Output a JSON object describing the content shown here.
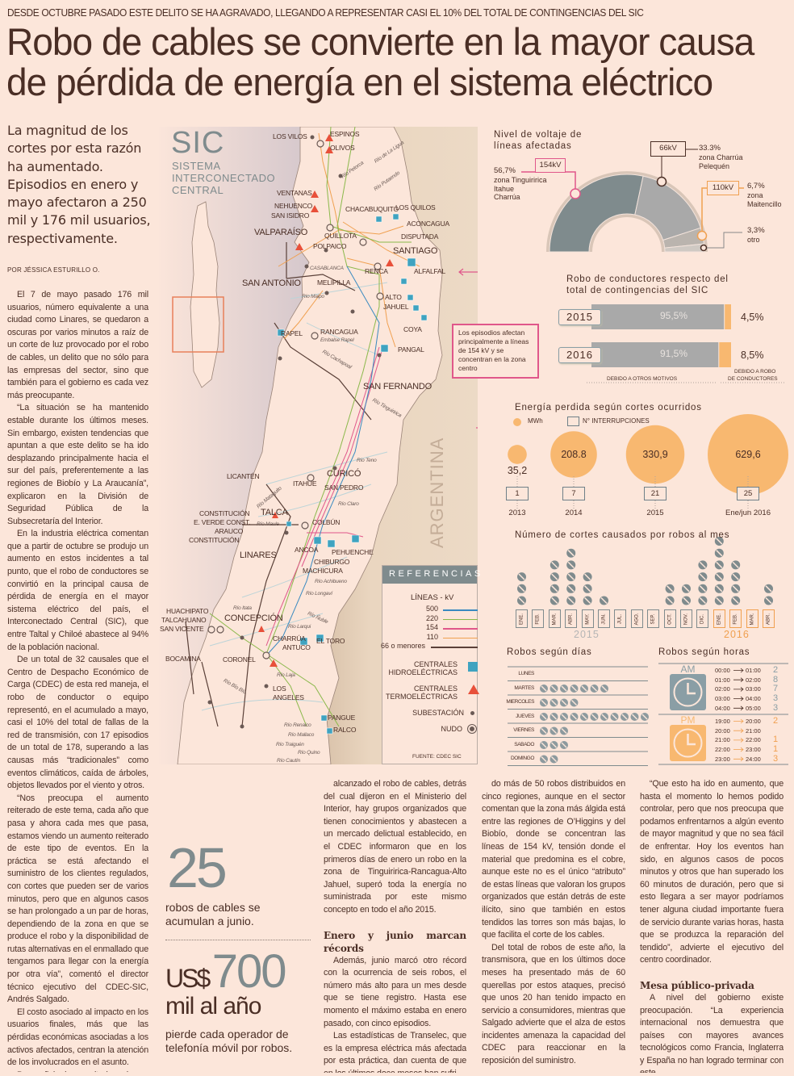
{
  "header": {
    "kicker": "DESDE OCTUBRE PASADO ESTE DELITO SE HA AGRAVADO, LLEGANDO A REPRESENTAR CASI EL 10% DEL TOTAL DE CONTINGENCIAS DEL SIC",
    "title_line1": "Robo de cables se convierte en la mayor causa",
    "title_line2": "de pérdida de energía en el sistema eléctrico"
  },
  "lede": "La magnitud de los cortes por esta razón ha aumentado. Episodios en enero y mayo afectaron a 250 mil y 176 mil usuarios, respectivamente.",
  "byline": "POR JÉSSICA ESTURILLO O.",
  "article": {
    "col1": [
      "El 7 de mayo pasado 176 mil usuarios, número equivalente a una ciudad como Linares, se quedaron a oscuras por varios minutos a raíz de un corte de luz provocado por el robo de cables, un delito que no sólo para las empresas del sector, sino que también para el gobierno es cada vez más preocupante.",
      "“La situación se ha mantenido estable durante los últimos meses. Sin embargo, existen tendencias que apuntan a que este delito se ha ido desplazando principalmente hacia el sur del país, preferentemente a las regiones de Biobío y La Araucanía”, explicaron en la División de Seguridad Pública de la Subsecretaría del Interior.",
      "En la industria eléctrica comentan que a partir de octubre se produjo un aumento en estos incidentes a tal punto, que el robo de conductores se convirtió en la principal causa de pérdida de energía en el mayor sistema eléctrico del país, el Interconectado Central (SIC), que entre Taltal y Chiloé abastece al 94% de la población nacional.",
      "De un total de 32 causales que el Centro de Despacho Económico de Carga (CDEC) de esta red maneja, el robo de conductor o equipo representó, en el acumulado a mayo, casi el 10% del total de fallas de la red de transmisión, con 17 episodios de un total de 178, superando a las causas más “tradicionales” como eventos climáticos, caída de árboles, objetos llevados por el viento y otros.",
      "“Nos preocupa el aumento reiterado de este tema, cada año que pasa y ahora cada mes que pasa, estamos viendo un aumento reiterado de este tipo de eventos. En la práctica se está afectando el suministro de los clientes regulados, con cortes que pueden ser de varios minutos, pero que en algunos casos se han prolongado a un par de horas, dependiendo de la zona en que se produce el robo y la disponibilidad de rutas alternativas en el enmallado que tengamos para llegar con la energía por otra vía”, comentó el director técnico ejecutivo del CDEC-SIC, Andrés Salgado.",
      "El costo asociado al impacto en los usuarios finales, más que las pérdidas económicas asociadas a los activos afectados, centran la atención de los involucrados en el asunto.",
      "Para reflejar la magnitud que ha"
    ],
    "col2": [
      "alcanzado el robo de cables, detrás del cual dijeron en el Ministerio del Interior, hay grupos organizados que tienen conocimientos y abastecen a un mercado delictual establecido, en el CDEC informaron que en los primeros días de enero un robo en la zona de Tinguiririca-Rancagua-Alto Jahuel, superó toda la energía no suministrada por este mismo concepto en todo el año 2015."
    ],
    "heading1": "Enero y junio marcan récords",
    "col2b": [
      "Además, junio marcó otro récord con la ocurrencia de seis robos, el número más alto para un mes desde que se tiene registro. Hasta ese momento el máximo estaba en enero pasado, con cinco episodios.",
      "Las estadísticas de Transelec, que es la empresa eléctrica más afectada por esta práctica, dan cuenta de que en los últimos doce meses han sufri-"
    ],
    "col3": [
      "do más de 50 robos distribuidos en cinco regiones, aunque en el sector comentan que la zona más álgida está entre las regiones de O’Higgins y del Biobío, donde se concentran las líneas de 154 kV, tensión donde el material que predomina es el cobre, aunque este no es el único “atributo” de estas líneas que valoran los grupos organizados que están detrás de este ilícito, sino que también en estos tendidos las torres son más bajas, lo que facilita el corte de los cables.",
      "Del total de robos de este año, la transmisora, que en los últimos doce meses ha presentado más de 60 querellas por estos ataques, precisó que unos 20 han tenido impacto en servicio a consumidores, mientras que Salgado advierte que el alza de estos incidentes amenaza la capacidad del CDEC para reaccionar en la reposición del suministro."
    ],
    "col4": [
      "“Que esto ha ido en aumento, que hasta el momento lo hemos podido controlar, pero que nos preocupa que podamos enfrentarnos a algún evento de mayor magnitud y que no sea fácil de enfrentar. Hoy los eventos han sido, en algunos casos de pocos minutos y otros que han superado los 60 minutos de duración, pero que si esto llegara a ser mayor podríamos tener alguna ciudad importante fuera de servicio durante varias horas, hasta que se produzca la reparación del tendido”, advierte el ejecutivo del centro coordinador."
    ],
    "heading2": "Mesa público-privada",
    "col4b": [
      "A nivel del gobierno existe preocupación. “La experiencia internacional nos demuestra que países con mayores avances tecnológicos como Francia, Inglaterra y España no han logrado terminar con este"
    ]
  },
  "stats": {
    "stat1_number": "25",
    "stat1_text": "robos de cables se acumulan a junio.",
    "stat2_currency": "US$",
    "stat2_number": "700",
    "stat2_unit": "mil al año",
    "stat2_text": "pierde cada operador de telefonía móvil por robos."
  },
  "map": {
    "logo": "SIC",
    "logo_sub1": "SISTEMA",
    "logo_sub2": "INTERCONECTADO",
    "logo_sub3": "CENTRAL",
    "country_label": "ARGENTINA",
    "callout": "Los episodios afectan principalmente a líneas de 154 kV y se concentran en la zona centro",
    "source": "FUENTE: CDEC SIC",
    "places": [
      "LOS VILOS",
      "ESPINOS",
      "OLIVOS",
      "VENTANAS",
      "NEHUENCO",
      "SAN ISIDRO",
      "CHACABUQUITO",
      "LOS QUILOS",
      "ACONCAGUA",
      "VALPARAÍSO",
      "QUILLOTA",
      "DISPUTADA",
      "POLPAICO",
      "SANTIAGO",
      "CASABLANCA",
      "RENCA",
      "ALFALFAL",
      "SAN ANTONIO",
      "MELIPILLA",
      "ALTO",
      "JAHUEL",
      "RAPEL",
      "RANCAGUA",
      "COYA",
      "PANGAL",
      "SAN FERNANDO",
      "LICANTÉN",
      "CURICÓ",
      "ITAHUE",
      "SAN PEDRO",
      "TALCA",
      "CONSTITUCIÓN",
      "E. VERDE CONST.",
      "ARAUCO",
      "CONSTITUCIÓN",
      "COLBÚN",
      "ANCOA",
      "PEHUENCHE",
      "LINARES",
      "CHIBURGO",
      "MACHICURA",
      "HUACHIPATO",
      "TALCAHUANO",
      "SAN VICENTE",
      "CONCEPCIÓN",
      "CHARRÚA",
      "ANTUCO",
      "EL TORO",
      "BOCAMINA",
      "CORONEL",
      "LOS",
      "ANGELES",
      "PANGUE",
      "RALCO"
    ],
    "rivers": [
      "Río Petorca",
      "Río de La Ligua",
      "Río Putaendo",
      "Río Maipo",
      "Embalse Rapel",
      "Río Cachapoal",
      "Río Tinguiririca",
      "Río Teno",
      "Río Claro",
      "Río Mataquito",
      "Río Maule",
      "Río Achibueno",
      "Río Longaví",
      "Río Itata",
      "Río Ñuble",
      "Río Larqui",
      "Río Laja",
      "Río Bío Bío",
      "Río Renaico",
      "Río Mallaco",
      "Río Traiguén",
      "Río Quino",
      "Río Cautín"
    ],
    "legend": {
      "title": "REFERENCIAS",
      "lines_title": "LÍNEAS - kV",
      "lines": [
        {
          "label": "500",
          "color": "#3a8ac0"
        },
        {
          "label": "220",
          "color": "#8ab84a"
        },
        {
          "label": "154",
          "color": "#e0578a"
        },
        {
          "label": "110",
          "color": "#f0a050"
        },
        {
          "label": "66 o menores",
          "color": "#5a4038"
        }
      ],
      "hydro": "CENTRALES HIDROELÉCTRICAS",
      "thermo": "CENTRALES TERMOELÉCTRICAS",
      "substation": "SUBESTACIÓN",
      "node": "NUDO",
      "hydro_color": "#3fa3c0",
      "thermo_color": "#e8503a"
    }
  },
  "chart_data": [
    {
      "type": "pie",
      "title": "Nivel de voltaje de líneas afectadas",
      "slices": [
        {
          "label": "154kV",
          "value": 56.7,
          "value_text": "56,7%",
          "detail": [
            "zona Tinguiririca",
            "Itahue",
            "Charrúa"
          ],
          "color": "#7f8b8d",
          "marker": "#e0578a"
        },
        {
          "label": "66kV",
          "value": 33.3,
          "value_text": "33.3%",
          "detail": [
            "zona Charrúa",
            "Pelequén"
          ],
          "color": "#a9a9a9",
          "marker": "#4a2e25"
        },
        {
          "label": "110kV",
          "value": 6.7,
          "value_text": "6,7%",
          "detail": [
            "zona",
            "Maitencillo"
          ],
          "color": "#bab4ae",
          "marker": "#f0a050"
        },
        {
          "label": "",
          "value": 3.3,
          "value_text": "3,3%",
          "detail": [
            "otro"
          ],
          "color": "#cfc9c3",
          "marker": "#4a2e25"
        }
      ]
    },
    {
      "type": "bar",
      "title": "Robo de conductores respecto del total de contingencias del SIC",
      "categories": [
        "2015",
        "2016"
      ],
      "series": [
        {
          "name": "DEBIDO A OTROS MOTIVOS",
          "values": [
            95.5,
            91.5
          ],
          "labels": [
            "95,5%",
            "91,5%"
          ],
          "color": "#a9a9a9"
        },
        {
          "name": "DEBIDO A ROBO DE CONDUCTORES",
          "values": [
            4.5,
            8.5
          ],
          "labels": [
            "4,5%",
            "8,5%"
          ],
          "color": "#f8b870"
        }
      ],
      "legend_left": "DEBIDO A OTROS MOTIVOS",
      "legend_right_1": "DEBIDO A ROBO",
      "legend_right_2": "DE CONDUCTORES"
    },
    {
      "type": "scatter",
      "title": "Energía perdida según cortes ocurridos",
      "legend_mwh": "MWh",
      "legend_int": "N° INTERRUPCIONES",
      "categories": [
        "2013",
        "2014",
        "2015",
        "Ene/jun 2016"
      ],
      "mwh": [
        35.2,
        208.8,
        330.9,
        629.6
      ],
      "mwh_labels": [
        "35,2",
        "208.8",
        "330,9",
        "629,6"
      ],
      "interrupciones": [
        "1",
        "7",
        "21",
        "25"
      ],
      "color": "#f8b870"
    },
    {
      "type": "bar",
      "title": "Número de cortes causados por robos al mes",
      "months": [
        "ENE.",
        "FEB.",
        "MAR.",
        "ABR.",
        "MAY.",
        "JUN.",
        "JUL.",
        "AGO.",
        "SEP.",
        "OCT.",
        "NOV.",
        "DIC.",
        "ENE.",
        "FEB.",
        "MAR.",
        "ABR."
      ],
      "years": [
        "2015",
        "2016"
      ],
      "values": [
        3,
        0,
        4,
        5,
        3,
        1,
        0,
        0,
        0,
        2,
        2,
        4,
        6,
        4,
        0,
        2
      ],
      "year_of_month": [
        0,
        0,
        0,
        0,
        0,
        0,
        0,
        0,
        0,
        0,
        0,
        0,
        1,
        1,
        1,
        1
      ],
      "colors": [
        "#7f8b8d",
        "#f0a050"
      ]
    },
    {
      "type": "bar",
      "title": "Robos según días",
      "categories": [
        "LUNES",
        "MARTES",
        "MIERCOLES",
        "JUEVES",
        "VIERNES",
        "SABADO",
        "DOMINGO"
      ],
      "values": [
        0,
        7,
        4,
        11,
        3,
        3,
        2
      ]
    },
    {
      "type": "table",
      "title": "Robos según horas",
      "am": {
        "label": "AM",
        "color": "#8a9ea5",
        "rows": [
          [
            "00:00",
            "01:00",
            "2"
          ],
          [
            "01:00",
            "02:00",
            "8"
          ],
          [
            "02:00",
            "03:00",
            "7"
          ],
          [
            "03:00",
            "04:00",
            "3"
          ],
          [
            "04:00",
            "05:00",
            "3"
          ]
        ]
      },
      "pm": {
        "label": "PM",
        "color": "#f8b870",
        "rows": [
          [
            "19:00",
            "20:00",
            "2"
          ],
          [
            "20:00",
            "21:00",
            ""
          ],
          [
            "21:00",
            "22:00",
            "1"
          ],
          [
            "22:00",
            "23:00",
            "1"
          ],
          [
            "23:00",
            "24:00",
            "3"
          ]
        ]
      }
    }
  ]
}
